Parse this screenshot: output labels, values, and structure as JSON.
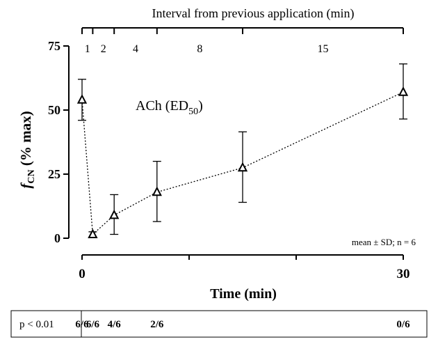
{
  "chart_data": {
    "type": "line",
    "title": "",
    "xlabel": "Time (min)",
    "ylabel_main": "f",
    "ylabel_sub": "CN",
    "ylabel_rest": " (% max)",
    "xlim": [
      0,
      30
    ],
    "ylim": [
      0,
      75
    ],
    "x_ticks": [
      0,
      30
    ],
    "x_minor_ticks": [
      0,
      10,
      20,
      30
    ],
    "y_ticks": [
      0,
      25,
      50,
      75
    ],
    "grid": false,
    "series": [
      {
        "marker": "open-triangle",
        "line_style": "dotted",
        "points": [
          {
            "x": 0.0,
            "y": 54,
            "sd_low": 46,
            "sd_high": 62
          },
          {
            "x": 1.0,
            "y": 1.5,
            "sd_low": 0.5,
            "sd_high": 2.5
          },
          {
            "x": 3.0,
            "y": 9,
            "sd_low": 1.5,
            "sd_high": 17
          },
          {
            "x": 7.0,
            "y": 18,
            "sd_low": 6.5,
            "sd_high": 30
          },
          {
            "x": 15.0,
            "y": 27.5,
            "sd_low": 14,
            "sd_high": 41.5
          },
          {
            "x": 30.0,
            "y": 57,
            "sd_low": 46.5,
            "sd_high": 68
          }
        ]
      }
    ],
    "annotations": {
      "series_label_main": "ACh (ED",
      "series_label_sub": "50",
      "series_label_end": ")",
      "stats_note": "mean ± SD; n = 6"
    },
    "top_axis": {
      "label": "Interval from previous application (min)",
      "boundaries": [
        0,
        1,
        3,
        7,
        15,
        30
      ],
      "interval_labels": [
        "1",
        "2",
        "4",
        "8",
        "15"
      ]
    },
    "significance_table": {
      "header": "p < 0.01",
      "cells": [
        {
          "x": 0.0,
          "text": "6/6"
        },
        {
          "x": 1.0,
          "text": "6/6"
        },
        {
          "x": 3.0,
          "text": "4/6"
        },
        {
          "x": 7.0,
          "text": "2/6"
        },
        {
          "x": 30.0,
          "text": "0/6"
        }
      ]
    }
  }
}
